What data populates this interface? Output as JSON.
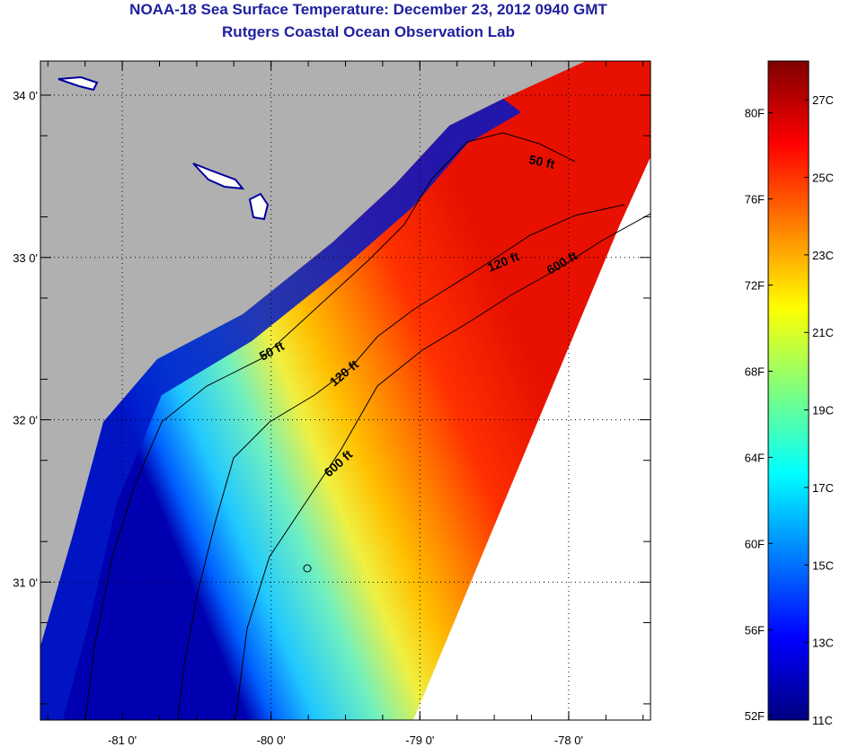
{
  "header": {
    "title": "NOAA-18 Sea Surface Temperature:  December 23, 2012 0940 GMT",
    "subtitle": "Rutgers Coastal Ocean Observation Lab"
  },
  "map": {
    "lon_range": [
      -81.55,
      -77.45
    ],
    "lat_range": [
      30.15,
      34.21
    ],
    "lon_ticks": [
      {
        "value": -81,
        "label": "-81 0'"
      },
      {
        "value": -80,
        "label": "-80 0'"
      },
      {
        "value": -79,
        "label": "-79 0'"
      },
      {
        "value": -78,
        "label": "-78 0'"
      }
    ],
    "lat_ticks": [
      {
        "value": 34,
        "label": "34 0'"
      },
      {
        "value": 33,
        "label": "33 0'"
      },
      {
        "value": 32,
        "label": "32 0'"
      },
      {
        "value": 31,
        "label": "31 0'"
      }
    ],
    "land_color": "#b0b0b0",
    "no_data_color": "#ffffff",
    "contour_labels": [
      "50 ft",
      "120 ft",
      "600 ft",
      "50 ft",
      "120 ft",
      "600 ft"
    ]
  },
  "colorbar": {
    "range_c": [
      11,
      28
    ],
    "celsius_labels": [
      "11C",
      "13C",
      "15C",
      "17C",
      "19C",
      "21C",
      "23C",
      "25C",
      "27C"
    ],
    "fahrenheit_labels": [
      "52F",
      "56F",
      "60F",
      "64F",
      "68F",
      "72F",
      "76F",
      "80F"
    ],
    "colormap": [
      "#00007f",
      "#0000ff",
      "#007fff",
      "#00ffff",
      "#7fff7f",
      "#ffff00",
      "#ff7f00",
      "#ff0000",
      "#7f0000"
    ]
  }
}
